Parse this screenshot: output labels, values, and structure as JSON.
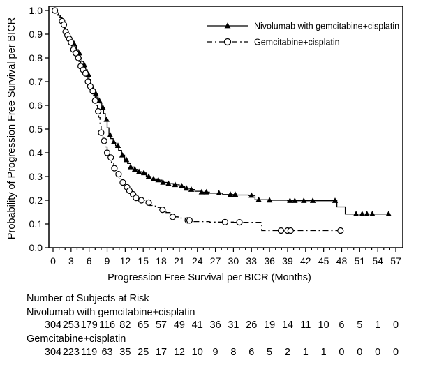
{
  "colors": {
    "foreground": "#000000",
    "background": "#ffffff"
  },
  "chart_data": {
    "type": "line",
    "subtype": "kaplan-meier-step",
    "title": "",
    "xlabel": "Progression Free Survival per BICR (Months)",
    "ylabel": "Probability of Progression Free Survival per BICR",
    "xlim": [
      0,
      57
    ],
    "ylim": [
      0.0,
      1.0
    ],
    "xticks": [
      0,
      3,
      6,
      9,
      12,
      15,
      18,
      21,
      24,
      27,
      30,
      33,
      36,
      39,
      42,
      45,
      48,
      51,
      54,
      57
    ],
    "x_minor_tick_step": 1,
    "yticks": [
      "1.0",
      "0.9",
      "0.8",
      "0.7",
      "0.6",
      "0.5",
      "0.4",
      "0.3",
      "0.2",
      "0.1",
      "0.0"
    ],
    "grid": false,
    "legend_position": "top-right-inside",
    "series": [
      {
        "name": "Nivolumab with gemcitabine+cisplatin",
        "line_style": "solid",
        "marker": "filled-triangle",
        "color": "#000000",
        "steps": [
          [
            0,
            1.0
          ],
          [
            0.6,
            0.99
          ],
          [
            0.9,
            0.98
          ],
          [
            1.2,
            0.97
          ],
          [
            1.5,
            0.95
          ],
          [
            1.8,
            0.93
          ],
          [
            2.1,
            0.91
          ],
          [
            2.4,
            0.9
          ],
          [
            2.7,
            0.885
          ],
          [
            3.0,
            0.87
          ],
          [
            3.3,
            0.86
          ],
          [
            3.6,
            0.85
          ],
          [
            3.9,
            0.835
          ],
          [
            4.2,
            0.82
          ],
          [
            4.5,
            0.8
          ],
          [
            4.8,
            0.785
          ],
          [
            5.1,
            0.77
          ],
          [
            5.4,
            0.75
          ],
          [
            5.7,
            0.73
          ],
          [
            6.0,
            0.71
          ],
          [
            6.2,
            0.69
          ],
          [
            6.4,
            0.675
          ],
          [
            6.6,
            0.66
          ],
          [
            6.9,
            0.65
          ],
          [
            7.2,
            0.635
          ],
          [
            7.5,
            0.62
          ],
          [
            7.8,
            0.61
          ],
          [
            8.1,
            0.59
          ],
          [
            8.4,
            0.565
          ],
          [
            8.7,
            0.54
          ],
          [
            9.0,
            0.505
          ],
          [
            9.3,
            0.475
          ],
          [
            9.6,
            0.46
          ],
          [
            10.0,
            0.445
          ],
          [
            10.4,
            0.43
          ],
          [
            10.9,
            0.41
          ],
          [
            11.4,
            0.39
          ],
          [
            11.9,
            0.37
          ],
          [
            12.4,
            0.355
          ],
          [
            12.9,
            0.34
          ],
          [
            13.5,
            0.33
          ],
          [
            14.1,
            0.32
          ],
          [
            14.8,
            0.315
          ],
          [
            15.5,
            0.3
          ],
          [
            16.3,
            0.29
          ],
          [
            17.2,
            0.285
          ],
          [
            18.1,
            0.275
          ],
          [
            19.0,
            0.27
          ],
          [
            20.0,
            0.265
          ],
          [
            21.0,
            0.26
          ],
          [
            21.9,
            0.25
          ],
          [
            22.8,
            0.245
          ],
          [
            23.6,
            0.238
          ],
          [
            24.6,
            0.234
          ],
          [
            26.0,
            0.23
          ],
          [
            28.2,
            0.224
          ],
          [
            30.5,
            0.222
          ],
          [
            32.5,
            0.22
          ],
          [
            33.6,
            0.202
          ],
          [
            36.0,
            0.2
          ],
          [
            39.0,
            0.198
          ],
          [
            47.2,
            0.172
          ],
          [
            48.6,
            0.142
          ],
          [
            55.8,
            0.142
          ]
        ],
        "censor_times": [
          3.5,
          4.4,
          5.2,
          5.9,
          6.5,
          7.1,
          7.7,
          8.3,
          8.9,
          9.5,
          10.1,
          10.8,
          11.5,
          12.2,
          12.9,
          13.6,
          14.3,
          15.1,
          15.9,
          16.7,
          17.5,
          18.3,
          19.2,
          20.3,
          21.4,
          22.2,
          23.0,
          24.7,
          25.5,
          27.6,
          29.5,
          30.3,
          33.0,
          34.2,
          36.0,
          39.4,
          40.2,
          41.7,
          43.2,
          46.9,
          50.4,
          51.4,
          52.2,
          53.1,
          55.8
        ]
      },
      {
        "name": "Gemcitabine+cisplatin",
        "line_style": "dash-dot",
        "marker": "open-circle",
        "color": "#000000",
        "steps": [
          [
            0,
            1.0
          ],
          [
            0.5,
            0.99
          ],
          [
            0.8,
            0.98
          ],
          [
            1.1,
            0.97
          ],
          [
            1.4,
            0.955
          ],
          [
            1.6,
            0.94
          ],
          [
            1.9,
            0.925
          ],
          [
            2.1,
            0.91
          ],
          [
            2.3,
            0.895
          ],
          [
            2.5,
            0.88
          ],
          [
            2.8,
            0.865
          ],
          [
            3.1,
            0.85
          ],
          [
            3.4,
            0.835
          ],
          [
            3.7,
            0.82
          ],
          [
            4.0,
            0.8
          ],
          [
            4.3,
            0.785
          ],
          [
            4.6,
            0.765
          ],
          [
            4.9,
            0.75
          ],
          [
            5.2,
            0.735
          ],
          [
            5.5,
            0.72
          ],
          [
            5.8,
            0.7
          ],
          [
            6.1,
            0.68
          ],
          [
            6.4,
            0.66
          ],
          [
            6.7,
            0.64
          ],
          [
            7.0,
            0.62
          ],
          [
            7.2,
            0.6
          ],
          [
            7.4,
            0.575
          ],
          [
            7.6,
            0.55
          ],
          [
            7.8,
            0.52
          ],
          [
            8.0,
            0.485
          ],
          [
            8.3,
            0.45
          ],
          [
            8.6,
            0.425
          ],
          [
            9.0,
            0.4
          ],
          [
            9.3,
            0.38
          ],
          [
            9.7,
            0.36
          ],
          [
            10.1,
            0.335
          ],
          [
            10.6,
            0.31
          ],
          [
            11.0,
            0.29
          ],
          [
            11.5,
            0.275
          ],
          [
            12.0,
            0.255
          ],
          [
            12.6,
            0.24
          ],
          [
            13.2,
            0.225
          ],
          [
            13.8,
            0.21
          ],
          [
            14.5,
            0.2
          ],
          [
            15.3,
            0.19
          ],
          [
            16.1,
            0.178
          ],
          [
            17.0,
            0.17
          ],
          [
            17.9,
            0.16
          ],
          [
            18.8,
            0.148
          ],
          [
            19.8,
            0.13
          ],
          [
            20.8,
            0.125
          ],
          [
            22.0,
            0.115
          ],
          [
            23.2,
            0.11
          ],
          [
            26.0,
            0.108
          ],
          [
            30.0,
            0.107
          ],
          [
            34.7,
            0.072
          ],
          [
            47.8,
            0.072
          ]
        ],
        "censor_times": [
          0.3,
          1.5,
          1.8,
          2.1,
          2.4,
          2.7,
          3.0,
          3.4,
          3.8,
          4.2,
          4.6,
          5.0,
          5.4,
          5.8,
          6.2,
          6.6,
          7.0,
          7.5,
          8.0,
          8.5,
          9.0,
          9.6,
          10.2,
          10.9,
          11.6,
          12.3,
          12.7,
          13.3,
          13.8,
          14.7,
          15.9,
          18.2,
          19.9,
          22.4,
          22.7,
          28.6,
          31.0,
          37.9,
          39.0,
          39.5,
          47.8
        ]
      }
    ]
  },
  "at_risk": {
    "title": "Number of Subjects at Risk",
    "groups": [
      {
        "label": "Nivolumab with gemcitabine+cisplatin",
        "counts": [
          304,
          253,
          179,
          116,
          82,
          65,
          57,
          49,
          41,
          36,
          31,
          26,
          19,
          14,
          11,
          10,
          6,
          5,
          1,
          0
        ]
      },
      {
        "label": "Gemcitabine+cisplatin",
        "counts": [
          304,
          223,
          119,
          63,
          35,
          25,
          17,
          12,
          10,
          9,
          8,
          6,
          5,
          2,
          1,
          1,
          0,
          0,
          0,
          0
        ]
      }
    ]
  }
}
